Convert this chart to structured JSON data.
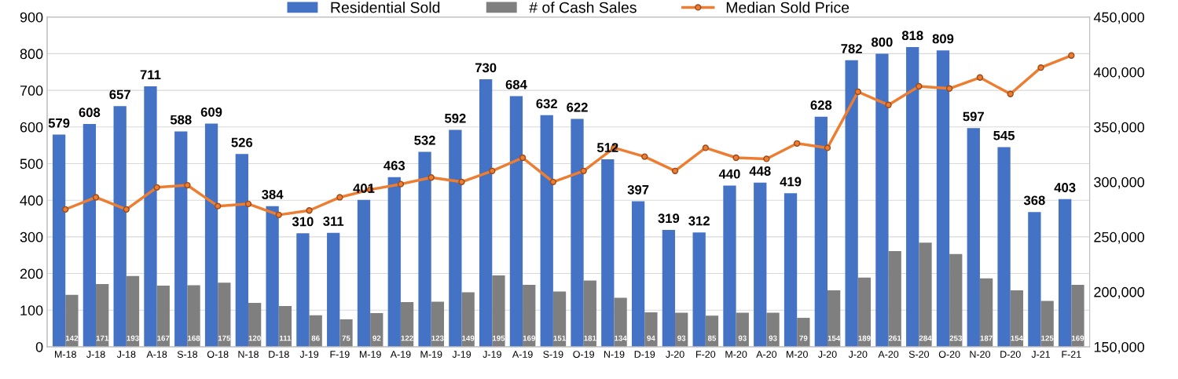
{
  "chart_data": {
    "type": "bar",
    "categories": [
      "M-18",
      "J-18",
      "J-18",
      "A-18",
      "S-18",
      "O-18",
      "N-18",
      "D-18",
      "J-19",
      "F-19",
      "M-19",
      "A-19",
      "M-19",
      "J-19",
      "J-19",
      "A-19",
      "S-19",
      "O-19",
      "N-19",
      "D-19",
      "J-20",
      "F-20",
      "M-20",
      "A-20",
      "M-20",
      "J-20",
      "J-20",
      "A-20",
      "S-20",
      "O-20",
      "N-20",
      "D-20",
      "J-21",
      "F-21"
    ],
    "series": [
      {
        "name": "Residential Sold",
        "color": "#4472c4",
        "values": [
          579,
          608,
          657,
          711,
          588,
          609,
          526,
          384,
          310,
          311,
          401,
          463,
          532,
          592,
          730,
          684,
          632,
          622,
          512,
          397,
          319,
          312,
          440,
          448,
          419,
          628,
          782,
          800,
          818,
          809,
          597,
          545,
          368,
          403
        ],
        "value_labels": [
          "579",
          "608",
          "657",
          "711",
          "588",
          "609",
          "526",
          "384",
          "310",
          "311",
          "401",
          "463",
          "532",
          "592",
          "730",
          "684",
          "632",
          "622",
          "512",
          "397",
          "319",
          "312",
          "440",
          "448",
          "419",
          "628",
          "782",
          "800",
          "818",
          "809",
          "597",
          "545",
          "368",
          "403"
        ]
      },
      {
        "name": "# of Cash Sales",
        "color": "#7f7f7f",
        "values": [
          142,
          171,
          193,
          167,
          168,
          175,
          120,
          111,
          86,
          75,
          92,
          122,
          123,
          149,
          195,
          169,
          151,
          181,
          134,
          94,
          93,
          85,
          93,
          93,
          79,
          154,
          189,
          261,
          284,
          253,
          187,
          154,
          125,
          169
        ],
        "value_labels": [
          "142",
          "171",
          "193",
          "167",
          "168",
          "175",
          "120",
          "111",
          "86",
          "75",
          "92",
          "122",
          "123",
          "149",
          "195",
          "169",
          "151",
          "181",
          "134",
          "94",
          "93",
          "85",
          "93",
          "93",
          "79",
          "154",
          "189",
          "261",
          "284",
          "253",
          "187",
          "154",
          "125",
          "169"
        ]
      },
      {
        "name": "Median Sold Price",
        "type": "line",
        "axis": "y2",
        "color": "#ed7d31",
        "values": [
          275000,
          286000,
          275000,
          295000,
          297000,
          278000,
          280000,
          270000,
          274000,
          286000,
          293000,
          298000,
          304000,
          300000,
          310000,
          322000,
          300000,
          310000,
          331000,
          323000,
          310000,
          331000,
          322000,
          321000,
          335000,
          331000,
          382000,
          370000,
          387000,
          385000,
          395000,
          380000,
          404000,
          415000
        ]
      }
    ],
    "ylim": [
      0,
      900
    ],
    "yticks": [
      0,
      100,
      200,
      300,
      400,
      500,
      600,
      700,
      800,
      900
    ],
    "y2lim": [
      150000,
      450000
    ],
    "y2ticks": [
      {
        "value": 150000,
        "label": "150,000"
      },
      {
        "value": 200000,
        "label": "200,000"
      },
      {
        "value": 250000,
        "label": "250,000"
      },
      {
        "value": 300000,
        "label": "300,000"
      },
      {
        "value": 350000,
        "label": "350,000"
      },
      {
        "value": 400000,
        "label": "400,000"
      },
      {
        "value": 450000,
        "label": "450,000"
      }
    ],
    "grid": "y",
    "legend": "top",
    "marker": "circle",
    "line_style": "solid"
  }
}
